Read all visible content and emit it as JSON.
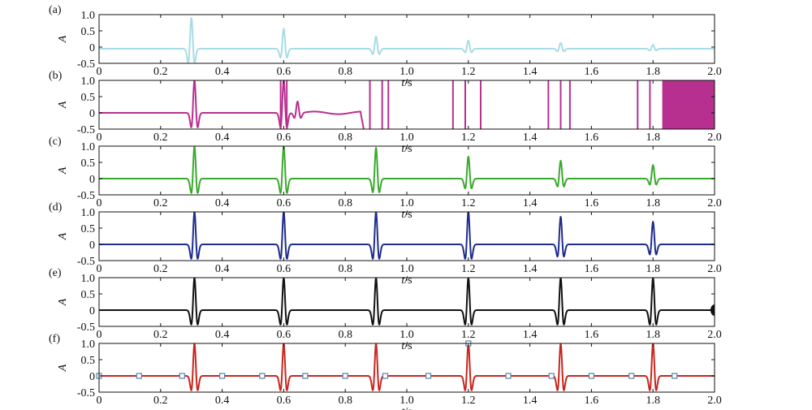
{
  "chart_data": [
    {
      "panel": "(a)",
      "type": "line",
      "xlabel_italic": "t",
      "xlabel_unit": "/s",
      "ylabel": "A",
      "xlim": [
        0,
        2.0
      ],
      "ylim": [
        -0.5,
        1.0
      ],
      "xticks": [
        "0",
        "0.2",
        "0.4",
        "0.6",
        "0.8",
        "1.0",
        "1.2",
        "1.4",
        "1.6",
        "1.8",
        "2.0"
      ],
      "yticks": [
        "1.0",
        "0.5",
        "0",
        "-0.5"
      ],
      "color": "#a8dce6",
      "series": [
        {
          "baseline": -0.05,
          "pulses": [
            {
              "t": 0.3,
              "amp": 0.95
            },
            {
              "t": 0.6,
              "amp": 0.62
            },
            {
              "t": 0.9,
              "amp": 0.38
            },
            {
              "t": 1.2,
              "amp": 0.25
            },
            {
              "t": 1.5,
              "amp": 0.18
            },
            {
              "t": 1.8,
              "amp": 0.12
            }
          ]
        }
      ]
    },
    {
      "panel": "(b)",
      "type": "line",
      "xlabel_italic": "t",
      "xlabel_unit": "/s",
      "ylabel": "A",
      "xlim": [
        0,
        2.0
      ],
      "ylim": [
        -0.5,
        1.0
      ],
      "xticks": [
        "0",
        "0.2",
        "0.4",
        "0.6",
        "0.8",
        "1.0",
        "1.2",
        "1.4",
        "1.6",
        "1.8",
        "2.0"
      ],
      "yticks": [
        "1.0",
        "0.5",
        "0",
        "-0.5"
      ],
      "color": "#b8308f",
      "series": [
        {
          "baseline": 0.0,
          "pulses": [
            {
              "t": 0.31,
              "amp": 1.0
            },
            {
              "t": 0.6,
              "amp": 1.0
            },
            {
              "t": 0.645,
              "amp": 0.35
            }
          ],
          "vertical_lines": [
            0.59,
            0.61,
            0.88,
            0.92,
            0.94,
            1.15,
            1.19,
            1.24,
            1.46,
            1.5,
            1.53,
            1.75,
            1.79
          ],
          "filled_band": [
            1.83,
            2.0
          ],
          "wander": {
            "from": 0.66,
            "to": 0.85,
            "level": 0.04
          },
          "drop_at": 0.86
        }
      ]
    },
    {
      "panel": "(c)",
      "type": "line",
      "xlabel_italic": "t",
      "xlabel_unit": "/s",
      "ylabel": "A",
      "xlim": [
        0,
        2.0
      ],
      "ylim": [
        -0.5,
        1.0
      ],
      "xticks": [
        "0",
        "0.2",
        "0.4",
        "0.6",
        "0.8",
        "1.0",
        "1.2",
        "1.4",
        "1.6",
        "1.8",
        "2.0"
      ],
      "yticks": [
        "1.0",
        "0.5",
        "0",
        "-0.5"
      ],
      "color": "#3aaa2e",
      "series": [
        {
          "baseline": 0.0,
          "pulses": [
            {
              "t": 0.31,
              "amp": 1.0
            },
            {
              "t": 0.6,
              "amp": 1.0
            },
            {
              "t": 0.9,
              "amp": 0.95
            },
            {
              "t": 1.2,
              "amp": 0.68
            },
            {
              "t": 1.5,
              "amp": 0.55
            },
            {
              "t": 1.8,
              "amp": 0.42
            }
          ]
        }
      ]
    },
    {
      "panel": "(d)",
      "type": "line",
      "xlabel_italic": "t",
      "xlabel_unit": "/s",
      "ylabel": "A",
      "xlim": [
        0,
        2.0
      ],
      "ylim": [
        -0.5,
        1.0
      ],
      "xticks": [
        "0",
        "0.2",
        "0.4",
        "0.6",
        "0.8",
        "1.0",
        "1.2",
        "1.4",
        "1.6",
        "1.8",
        "2.0"
      ],
      "yticks": [
        "1.0",
        "0.5",
        "0",
        "-0.5"
      ],
      "color": "#1f2c8c",
      "series": [
        {
          "baseline": 0.0,
          "pulses": [
            {
              "t": 0.31,
              "amp": 1.0
            },
            {
              "t": 0.6,
              "amp": 1.0
            },
            {
              "t": 0.9,
              "amp": 1.0
            },
            {
              "t": 1.2,
              "amp": 1.0
            },
            {
              "t": 1.5,
              "amp": 0.85
            },
            {
              "t": 1.8,
              "amp": 0.7
            }
          ]
        }
      ]
    },
    {
      "panel": "(e)",
      "type": "line",
      "xlabel_italic": "t",
      "xlabel_unit": "/s",
      "ylabel": "A",
      "xlim": [
        0,
        2.0
      ],
      "ylim": [
        -0.5,
        1.0
      ],
      "xticks": [
        "0",
        "0.2",
        "0.4",
        "0.6",
        "0.8",
        "1.0",
        "1.2",
        "1.4",
        "1.6",
        "1.8",
        "2.0"
      ],
      "yticks": [
        "1.0",
        "0.5",
        "0",
        "-0.5"
      ],
      "color": "#111111",
      "series": [
        {
          "baseline": 0.0,
          "pulses": [
            {
              "t": 0.31,
              "amp": 1.0
            },
            {
              "t": 0.6,
              "amp": 1.0
            },
            {
              "t": 0.9,
              "amp": 1.0
            },
            {
              "t": 1.2,
              "amp": 1.0
            },
            {
              "t": 1.5,
              "amp": 1.0
            },
            {
              "t": 1.8,
              "amp": 1.0
            }
          ],
          "end_marker": 2.0
        }
      ]
    },
    {
      "panel": "(f)",
      "type": "line",
      "xlabel_italic": "t",
      "xlabel_unit": "/s",
      "ylabel": "A",
      "xlim": [
        0,
        2.0
      ],
      "ylim": [
        -0.5,
        1.0
      ],
      "xticks": [
        "0",
        "0.2",
        "0.4",
        "0.6",
        "0.8",
        "1.0",
        "1.2",
        "1.4",
        "1.6",
        "1.8",
        "2.0"
      ],
      "yticks": [
        "1.0",
        "0.5",
        "0",
        "-0.5"
      ],
      "color": "#c8261f",
      "series": [
        {
          "baseline": 0.0,
          "pulses": [
            {
              "t": 0.31,
              "amp": 1.0
            },
            {
              "t": 0.6,
              "amp": 1.0
            },
            {
              "t": 0.9,
              "amp": 1.0
            },
            {
              "t": 1.2,
              "amp": 1.0
            },
            {
              "t": 1.5,
              "amp": 1.0
            },
            {
              "t": 1.8,
              "amp": 1.0
            }
          ],
          "markers": [
            {
              "t": 0.0,
              "y": 0.0
            },
            {
              "t": 0.13,
              "y": 0.0
            },
            {
              "t": 0.27,
              "y": 0.0
            },
            {
              "t": 0.4,
              "y": 0.0
            },
            {
              "t": 0.53,
              "y": 0.0
            },
            {
              "t": 0.67,
              "y": 0.0
            },
            {
              "t": 0.8,
              "y": 0.0
            },
            {
              "t": 0.93,
              "y": 0.0
            },
            {
              "t": 1.07,
              "y": 0.0
            },
            {
              "t": 1.2,
              "y": 1.0
            },
            {
              "t": 1.33,
              "y": 0.0
            },
            {
              "t": 1.47,
              "y": 0.0
            },
            {
              "t": 1.6,
              "y": 0.0
            },
            {
              "t": 1.73,
              "y": 0.0
            },
            {
              "t": 1.87,
              "y": 0.0
            }
          ],
          "marker_color": "#5a7fa6"
        }
      ]
    }
  ]
}
